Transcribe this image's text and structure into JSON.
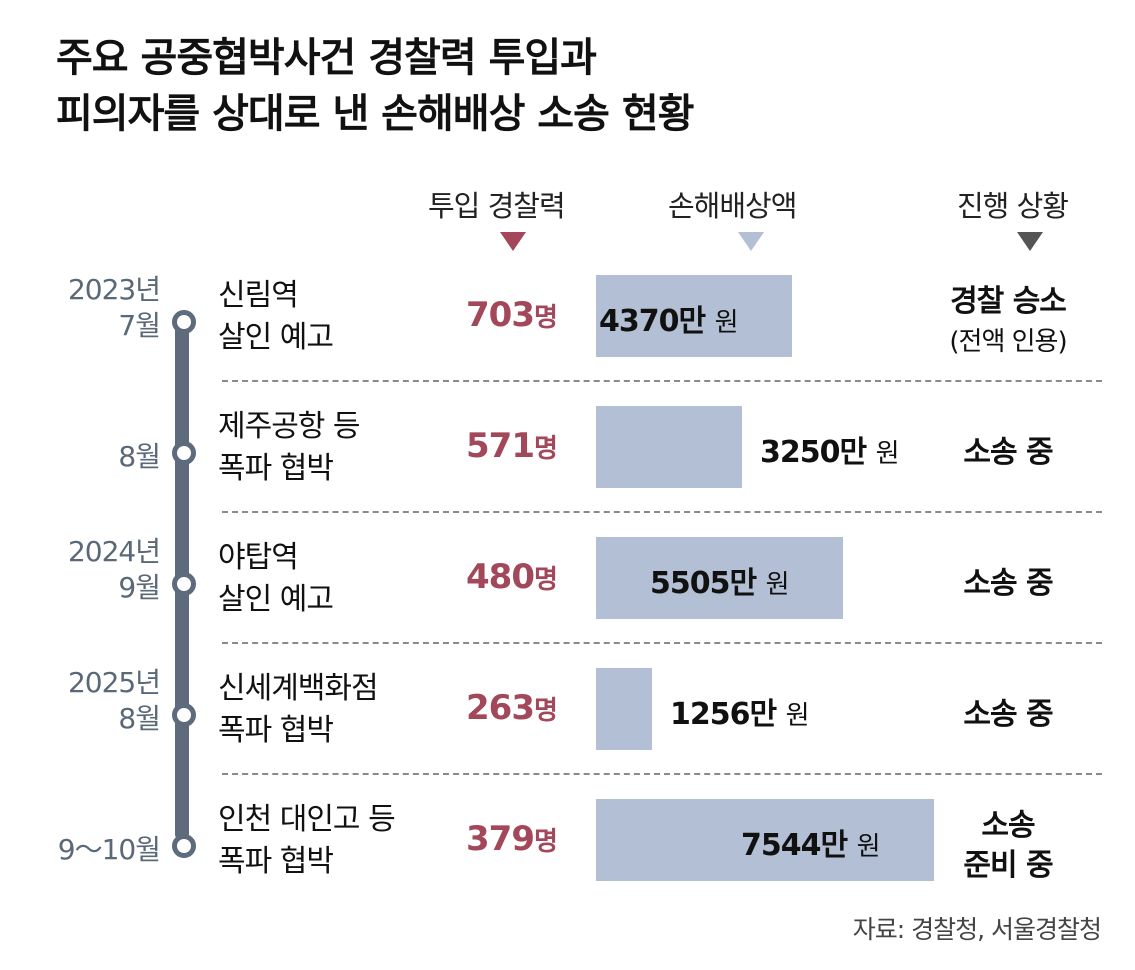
{
  "title_line1": "주요 공중협박사건 경찰력 투입과",
  "title_line2": "피의자를 상대로 낸 손해배상 소송 현황",
  "columns": {
    "police": "투입 경찰력",
    "damages": "손해배상액",
    "status": "진행 상황"
  },
  "colors": {
    "police_tri": "#a3475a",
    "damages_tri": "#b3bfd4",
    "status_tri": "#555555",
    "bar": "#b3bfd4",
    "timeline": "#5d6b7c"
  },
  "police_unit": "명",
  "amount_suffix": "만",
  "amount_unit": "원",
  "source": "자료: 경찰청, 서울경찰청",
  "chart_data": {
    "type": "bar",
    "orientation": "horizontal",
    "rows": [
      {
        "date_line1": "2023년",
        "date_line2": "7월",
        "event_line1": "신림역",
        "event_line2": "살인 예고",
        "police": 703,
        "damages": 4370,
        "status": "경찰 승소",
        "status_line2": "",
        "status_note": "(전액 인용)"
      },
      {
        "date_line1": "",
        "date_line2": "8월",
        "event_line1": "제주공항 등",
        "event_line2": "폭파 협박",
        "police": 571,
        "damages": 3250,
        "status": "소송 중",
        "status_line2": "",
        "status_note": ""
      },
      {
        "date_line1": "2024년",
        "date_line2": "9월",
        "event_line1": "야탑역",
        "event_line2": "살인 예고",
        "police": 480,
        "damages": 5505,
        "status": "소송 중",
        "status_line2": "",
        "status_note": ""
      },
      {
        "date_line1": "2025년",
        "date_line2": "8월",
        "event_line1": "신세계백화점",
        "event_line2": "폭파 협박",
        "police": 263,
        "damages": 1256,
        "status": "소송 중",
        "status_line2": "",
        "status_note": ""
      },
      {
        "date_line1": "",
        "date_line2": "9～10월",
        "event_line1": "인천 대인고 등",
        "event_line2": "폭파 협박",
        "police": 379,
        "damages": 7544,
        "status": "소송",
        "status_line2": "준비 중",
        "status_note": ""
      }
    ]
  }
}
